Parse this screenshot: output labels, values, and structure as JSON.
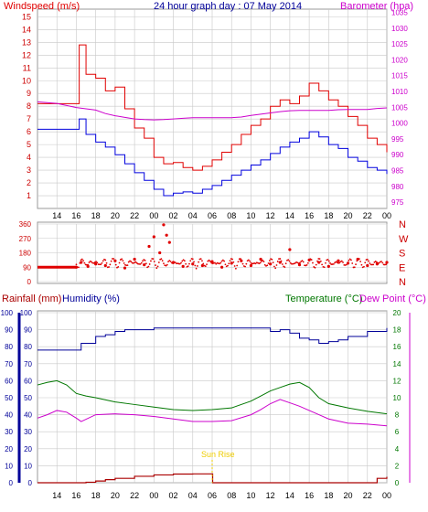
{
  "header": {
    "left_label": "Windspeed (m/s)",
    "title": "24 hour graph day : 07 May 2014",
    "right_label": "Barometer (hpa)"
  },
  "colors": {
    "wind": "#e00000",
    "gust": "#e00000",
    "avg_wind": "#0000dd",
    "barometer": "#cc00cc",
    "direction": "#e00000",
    "humidity": "#000099",
    "temperature": "#007700",
    "dewpoint": "#cc00cc",
    "rainfall": "#aa0000",
    "sunrise": "#eecc00",
    "grid": "#c8c8c8"
  },
  "chart_data": [
    {
      "type": "line",
      "panel": "wind-barometer",
      "x_ticks": [
        "14",
        "16",
        "18",
        "20",
        "22",
        "00",
        "02",
        "04",
        "06",
        "08",
        "10",
        "12",
        "14",
        "16",
        "18",
        "20",
        "22",
        "00"
      ],
      "y_left": {
        "label": "Windspeed (m/s)",
        "ticks": [
          "1",
          "2",
          "3",
          "4",
          "5",
          "6",
          "7",
          "8",
          "9",
          "10",
          "11",
          "12",
          "13",
          "14",
          "15"
        ],
        "ylim": [
          0,
          15.6
        ]
      },
      "y_right": {
        "label": "Barometer (hpa)",
        "ticks": [
          "975",
          "980",
          "985",
          "990",
          "995",
          "1000",
          "1005",
          "1010",
          "1015",
          "1020",
          "1025",
          "1030",
          "1035"
        ],
        "ylim": [
          973,
          1036
        ]
      },
      "series": [
        {
          "axis": "left",
          "x": [
            12,
            14,
            16,
            16.3,
            17,
            18,
            19,
            20,
            21,
            22,
            23,
            24,
            25,
            26,
            27,
            28,
            29,
            30,
            31,
            32,
            33,
            34,
            35,
            36,
            37,
            38,
            39,
            40,
            41,
            42,
            43,
            44,
            45,
            46,
            47,
            48
          ],
          "values": [
            8.2,
            8.2,
            8.2,
            12.8,
            10.5,
            10.2,
            9.2,
            9.5,
            7.8,
            6.3,
            5.5,
            4.0,
            3.5,
            3.6,
            3.2,
            3.0,
            3.3,
            3.8,
            4.4,
            5.0,
            5.8,
            6.5,
            7.0,
            8.0,
            8.5,
            8.2,
            8.8,
            9.8,
            9.2,
            8.5,
            8.0,
            7.2,
            6.5,
            5.5,
            5.0,
            4.4
          ]
        },
        {
          "axis": "left",
          "x": [
            12,
            14,
            16,
            16.3,
            17,
            18,
            19,
            20,
            21,
            22,
            23,
            24,
            25,
            26,
            27,
            28,
            29,
            30,
            31,
            32,
            33,
            34,
            35,
            36,
            37,
            38,
            39,
            40,
            41,
            42,
            43,
            44,
            45,
            46,
            47,
            48
          ],
          "values": [
            6.2,
            6.2,
            6.2,
            7.0,
            5.8,
            5.2,
            4.8,
            4.2,
            3.5,
            2.8,
            2.2,
            1.5,
            1.0,
            1.2,
            1.3,
            1.2,
            1.5,
            1.8,
            2.2,
            2.6,
            3.0,
            3.4,
            3.8,
            4.3,
            4.8,
            5.2,
            5.5,
            6.0,
            5.6,
            5.0,
            4.7,
            4.0,
            3.7,
            3.2,
            3.0,
            2.7
          ]
        },
        {
          "axis": "right",
          "x": [
            12,
            14,
            16,
            17,
            18,
            19,
            20,
            21,
            22,
            23,
            24,
            25,
            26,
            27,
            28,
            29,
            30,
            31,
            32,
            33,
            34,
            35,
            36,
            37,
            38,
            39,
            40,
            41,
            42,
            43,
            44,
            45,
            46,
            47,
            48
          ],
          "values": [
            1006.7,
            1006.2,
            1004.9,
            1004.5,
            1004.1,
            1003.0,
            1002.3,
            1001.8,
            1001.3,
            1001.1,
            1001.0,
            1001.1,
            1001.3,
            1001.5,
            1001.7,
            1001.7,
            1001.7,
            1001.7,
            1001.7,
            1001.9,
            1002.4,
            1002.8,
            1003.2,
            1003.6,
            1003.9,
            1004.0,
            1004.0,
            1004.0,
            1004.0,
            1004.2,
            1004.3,
            1004.3,
            1004.3,
            1004.6,
            1004.8
          ]
        }
      ]
    },
    {
      "type": "scatter",
      "panel": "wind-direction",
      "y_ticks": [
        "360",
        "270",
        "180",
        "90",
        "0"
      ],
      "y_right_labels": [
        "N",
        "W",
        "S",
        "E",
        "N"
      ],
      "ylim": [
        0,
        360
      ],
      "points": [
        [
          16.0,
          90
        ],
        [
          16.5,
          120
        ],
        [
          17.2,
          95
        ],
        [
          18.0,
          110
        ],
        [
          19.0,
          100
        ],
        [
          20.0,
          130
        ],
        [
          21.0,
          85
        ],
        [
          22.0,
          140
        ],
        [
          23.0,
          105
        ],
        [
          23.5,
          220
        ],
        [
          24.0,
          280
        ],
        [
          24.6,
          180
        ],
        [
          25.0,
          355
        ],
        [
          25.3,
          290
        ],
        [
          25.6,
          245
        ],
        [
          26.0,
          120
        ],
        [
          27.0,
          95
        ],
        [
          28.0,
          110
        ],
        [
          29.0,
          100
        ],
        [
          30.0,
          125
        ],
        [
          31.0,
          90
        ],
        [
          32.0,
          115
        ],
        [
          33.0,
          130
        ],
        [
          34.0,
          100
        ],
        [
          35.0,
          140
        ],
        [
          36.0,
          110
        ],
        [
          37.0,
          120
        ],
        [
          38.0,
          200
        ],
        [
          39.0,
          105
        ],
        [
          40.0,
          135
        ],
        [
          41.0,
          120
        ],
        [
          42.0,
          95
        ],
        [
          43.0,
          130
        ],
        [
          44.0,
          115
        ],
        [
          45.0,
          140
        ],
        [
          46.0,
          100
        ],
        [
          47.0,
          110
        ],
        [
          48.0,
          120
        ]
      ],
      "baseline": {
        "x": [
          12,
          16
        ],
        "values": [
          90,
          90
        ]
      }
    },
    {
      "type": "line",
      "panel": "rain-humidity-temperature",
      "header_left": "Rainfall (mm)",
      "header_left2": "Humidity (%)",
      "header_right": "Temperature (°C)",
      "header_right2": "Dew Point (°C)",
      "annotation": "Sun Rise",
      "y_rain_ticks": [
        "0",
        "10",
        "20",
        "30",
        "40",
        "50",
        "60",
        "70",
        "80",
        "90",
        "100"
      ],
      "y_humidity_ticks": [
        "0",
        "10",
        "20",
        "30",
        "40",
        "50",
        "60",
        "70",
        "80",
        "90",
        "100"
      ],
      "y_temp_ticks": [
        "0",
        "2",
        "4",
        "6",
        "8",
        "10",
        "12",
        "14",
        "16",
        "18",
        "20"
      ],
      "ylim_percent": [
        0,
        100
      ],
      "ylim_temp": [
        0,
        20
      ],
      "series": [
        {
          "axis": "humidity",
          "x": [
            12,
            14,
            16,
            16.5,
            18,
            19,
            20,
            21,
            22,
            24,
            26,
            28,
            30,
            32,
            34,
            36,
            37,
            38,
            39,
            40,
            41,
            42,
            43,
            44,
            46,
            48
          ],
          "values": [
            78,
            78,
            78,
            82,
            86,
            87,
            89,
            90,
            90,
            91,
            91,
            91,
            91,
            91,
            91,
            89,
            90,
            88,
            85,
            84,
            82,
            83,
            84,
            86,
            89,
            91
          ]
        },
        {
          "axis": "temp",
          "x": [
            12,
            13,
            14,
            15,
            16,
            17,
            18,
            20,
            22,
            24,
            26,
            28,
            30,
            32,
            34,
            35,
            36,
            37,
            38,
            39,
            40,
            41,
            42,
            44,
            46,
            48
          ],
          "values": [
            11.5,
            11.8,
            12.0,
            11.5,
            10.5,
            10.2,
            10.0,
            9.5,
            9.2,
            8.9,
            8.6,
            8.5,
            8.6,
            8.8,
            9.6,
            10.2,
            10.8,
            11.2,
            11.6,
            11.8,
            11.2,
            10.0,
            9.3,
            8.8,
            8.4,
            8.1
          ]
        },
        {
          "axis": "temp",
          "x": [
            12,
            13,
            14,
            15,
            16,
            16.5,
            18,
            20,
            22,
            24,
            26,
            28,
            30,
            32,
            34,
            35,
            36,
            37,
            38,
            39,
            40,
            41,
            42,
            44,
            46,
            48
          ],
          "values": [
            7.6,
            8.0,
            8.5,
            8.3,
            7.6,
            7.2,
            8.0,
            8.1,
            8.0,
            7.8,
            7.5,
            7.2,
            7.2,
            7.3,
            8.0,
            8.6,
            9.3,
            9.8,
            9.4,
            9.0,
            8.5,
            8.0,
            7.5,
            7.0,
            6.9,
            6.7
          ]
        },
        {
          "axis": "rain",
          "x": [
            12,
            14,
            16,
            17,
            18,
            19,
            20,
            22,
            24,
            26,
            28,
            30,
            30.05,
            32,
            34,
            36,
            38,
            40,
            42,
            44,
            46,
            47,
            48
          ],
          "values": [
            0,
            0,
            0,
            0.3,
            1.0,
            1.8,
            2.6,
            3.8,
            4.6,
            5.1,
            5.2,
            5.2,
            0,
            0,
            0,
            0,
            0,
            0,
            0,
            0,
            0,
            2.6,
            3.5
          ]
        }
      ]
    }
  ]
}
